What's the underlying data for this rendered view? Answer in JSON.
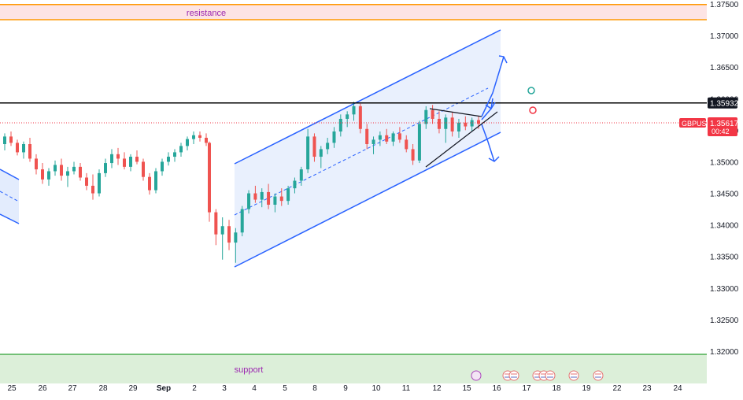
{
  "chart_data": {
    "type": "candlestick",
    "symbol": "GBPUSD",
    "y_ticks": [
      "1.37500",
      "1.37000",
      "1.36500",
      "1.36000",
      "1.35500",
      "1.35000",
      "1.34500",
      "1.34000",
      "1.33500",
      "1.33000",
      "1.32500",
      "1.32000"
    ],
    "ylim": [
      1.3145,
      1.3755
    ],
    "x_ticks": [
      "25",
      "26",
      "27",
      "28",
      "29",
      "Sep",
      "2",
      "3",
      "4",
      "5",
      "8",
      "9",
      "10",
      "11",
      "12",
      "15",
      "16",
      "17",
      "18",
      "19",
      "22",
      "23",
      "24"
    ],
    "zones": [
      {
        "name": "resistance",
        "label": "resistance",
        "from": 1.3725,
        "to": 1.3749,
        "color": "#ff9800",
        "fill": "#fde4e4"
      },
      {
        "name": "support",
        "label": "support",
        "from": 1.3145,
        "to": 1.3195,
        "color": "#4caf50",
        "fill": "#dcefd9"
      }
    ],
    "horizontal_line": {
      "value": 1.35932,
      "label": "1.35932",
      "color": "#000000"
    },
    "current_price": {
      "value": 1.35617,
      "label": "1.35617",
      "symbol_label": "GBPUSD",
      "countdown": "00:42",
      "color": "#f23645"
    },
    "colors": {
      "up": "#26a69a",
      "down": "#ef5350",
      "channel": "#2962ff",
      "channel_fill": "#e3ecfd"
    },
    "candles": [
      [
        1.3528,
        1.3545,
        1.3518,
        1.354
      ],
      [
        1.354,
        1.3548,
        1.3525,
        1.353
      ],
      [
        1.353,
        1.3535,
        1.351,
        1.3515
      ],
      [
        1.3515,
        1.3532,
        1.3505,
        1.3528
      ],
      [
        1.3528,
        1.3538,
        1.35,
        1.3505
      ],
      [
        1.3505,
        1.3512,
        1.348,
        1.3488
      ],
      [
        1.3488,
        1.3498,
        1.3465,
        1.3472
      ],
      [
        1.3472,
        1.349,
        1.3462,
        1.3485
      ],
      [
        1.3485,
        1.3502,
        1.3478,
        1.3495
      ],
      [
        1.3495,
        1.3505,
        1.347,
        1.3478
      ],
      [
        1.3478,
        1.3492,
        1.346,
        1.3485
      ],
      [
        1.3485,
        1.35,
        1.348,
        1.3492
      ],
      [
        1.3492,
        1.3498,
        1.347,
        1.3475
      ],
      [
        1.3475,
        1.3482,
        1.3455,
        1.3462
      ],
      [
        1.3462,
        1.348,
        1.344,
        1.345
      ],
      [
        1.345,
        1.3488,
        1.3445,
        1.3482
      ],
      [
        1.3482,
        1.3505,
        1.3476,
        1.3498
      ],
      [
        1.3498,
        1.352,
        1.349,
        1.3512
      ],
      [
        1.3512,
        1.3522,
        1.3495,
        1.3505
      ],
      [
        1.3505,
        1.3515,
        1.3488,
        1.3492
      ],
      [
        1.3492,
        1.3512,
        1.3485,
        1.3508
      ],
      [
        1.3508,
        1.3518,
        1.3496,
        1.35
      ],
      [
        1.35,
        1.3505,
        1.347,
        1.3476
      ],
      [
        1.3476,
        1.3482,
        1.3448,
        1.3455
      ],
      [
        1.3455,
        1.349,
        1.345,
        1.3485
      ],
      [
        1.3485,
        1.3505,
        1.3478,
        1.35
      ],
      [
        1.35,
        1.3515,
        1.3494,
        1.3508
      ],
      [
        1.3508,
        1.352,
        1.35,
        1.3515
      ],
      [
        1.3515,
        1.353,
        1.3508,
        1.3525
      ],
      [
        1.3525,
        1.354,
        1.3518,
        1.3536
      ],
      [
        1.3536,
        1.3548,
        1.3528,
        1.3542
      ],
      [
        1.3542,
        1.3548,
        1.3532,
        1.3538
      ],
      [
        1.3538,
        1.3545,
        1.3525,
        1.353
      ],
      [
        1.353,
        1.3532,
        1.3405,
        1.342
      ],
      [
        1.342,
        1.3425,
        1.3368,
        1.3385
      ],
      [
        1.3385,
        1.3412,
        1.3345,
        1.3398
      ],
      [
        1.3398,
        1.3408,
        1.336,
        1.3372
      ],
      [
        1.3372,
        1.3395,
        1.334,
        1.3388
      ],
      [
        1.3388,
        1.343,
        1.3382,
        1.3425
      ],
      [
        1.3425,
        1.3455,
        1.3418,
        1.345
      ],
      [
        1.345,
        1.3462,
        1.3435,
        1.344
      ],
      [
        1.344,
        1.3458,
        1.3428,
        1.3452
      ],
      [
        1.3452,
        1.3465,
        1.3425,
        1.3432
      ],
      [
        1.3432,
        1.345,
        1.342,
        1.3445
      ],
      [
        1.3445,
        1.3458,
        1.343,
        1.3438
      ],
      [
        1.3438,
        1.3462,
        1.3432,
        1.3458
      ],
      [
        1.3458,
        1.3475,
        1.345,
        1.347
      ],
      [
        1.347,
        1.3492,
        1.3462,
        1.3488
      ],
      [
        1.3488,
        1.3552,
        1.3482,
        1.354
      ],
      [
        1.354,
        1.3545,
        1.35,
        1.3508
      ],
      [
        1.3508,
        1.3525,
        1.349,
        1.352
      ],
      [
        1.352,
        1.3538,
        1.3512,
        1.353
      ],
      [
        1.353,
        1.3555,
        1.3522,
        1.3548
      ],
      [
        1.3548,
        1.3575,
        1.354,
        1.3568
      ],
      [
        1.3568,
        1.358,
        1.3555,
        1.3575
      ],
      [
        1.3575,
        1.3595,
        1.3565,
        1.3588
      ],
      [
        1.3588,
        1.3592,
        1.3545,
        1.3552
      ],
      [
        1.3552,
        1.356,
        1.352,
        1.3528
      ],
      [
        1.3528,
        1.354,
        1.3512,
        1.3535
      ],
      [
        1.3535,
        1.3548,
        1.3525,
        1.3542
      ],
      [
        1.3542,
        1.3552,
        1.3528,
        1.3532
      ],
      [
        1.3532,
        1.3548,
        1.3525,
        1.3545
      ],
      [
        1.3545,
        1.3555,
        1.353,
        1.3535
      ],
      [
        1.3535,
        1.3542,
        1.3515,
        1.352
      ],
      [
        1.352,
        1.3528,
        1.3495,
        1.3502
      ],
      [
        1.3502,
        1.3565,
        1.3498,
        1.356
      ],
      [
        1.356,
        1.3588,
        1.3552,
        1.3582
      ],
      [
        1.3582,
        1.359,
        1.356,
        1.3568
      ],
      [
        1.3568,
        1.358,
        1.3545,
        1.3552
      ],
      [
        1.3552,
        1.3575,
        1.353,
        1.357
      ],
      [
        1.357,
        1.3578,
        1.354,
        1.3548
      ],
      [
        1.3548,
        1.3568,
        1.3538,
        1.3562
      ],
      [
        1.3562,
        1.3572,
        1.355,
        1.3556
      ],
      [
        1.3556,
        1.357,
        1.3548,
        1.3566
      ],
      [
        1.3566,
        1.3572,
        1.3552,
        1.356
      ]
    ]
  }
}
